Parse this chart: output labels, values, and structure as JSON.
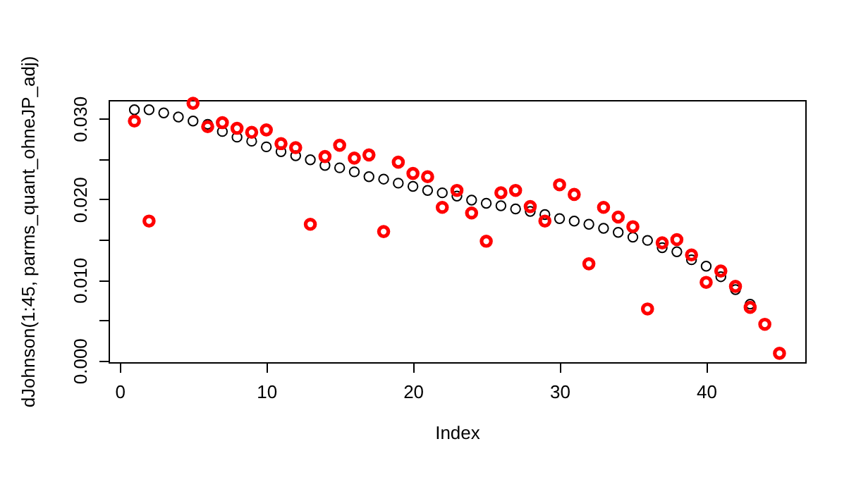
{
  "chart_data": {
    "type": "scatter",
    "xlabel": "Index",
    "ylabel": "dJohnson(1:45, parms_quant_ohneJP_adj)",
    "x": [
      1,
      2,
      3,
      4,
      5,
      6,
      7,
      8,
      9,
      10,
      11,
      12,
      13,
      14,
      15,
      16,
      17,
      18,
      19,
      20,
      21,
      22,
      23,
      24,
      25,
      26,
      27,
      28,
      29,
      30,
      31,
      32,
      33,
      34,
      35,
      36,
      37,
      38,
      39,
      40,
      41,
      42,
      43,
      44,
      45
    ],
    "series": [
      {
        "color": "#000000",
        "values": [
          0.0311,
          0.0311,
          0.0307,
          0.0302,
          0.0297,
          0.0293,
          0.0284,
          0.0277,
          0.0272,
          0.0265,
          0.0259,
          0.0254,
          0.0249,
          0.0242,
          0.0239,
          0.0234,
          0.0228,
          0.0225,
          0.022,
          0.0216,
          0.0211,
          0.0208,
          0.0204,
          0.0199,
          0.0195,
          0.0192,
          0.0188,
          0.0185,
          0.0181,
          0.0176,
          0.0173,
          0.0169,
          0.0164,
          0.0159,
          0.0153,
          0.0149,
          0.014,
          0.0135,
          0.0125,
          0.0117,
          0.0104,
          0.0088,
          0.007,
          null,
          null
        ]
      },
      {
        "color": "#ff0000",
        "values": [
          0.0297,
          0.0173,
          null,
          null,
          0.0319,
          0.029,
          0.0295,
          0.0288,
          0.0283,
          0.0286,
          0.0269,
          0.0264,
          0.0169,
          0.0253,
          0.0267,
          0.0251,
          0.0255,
          0.016,
          0.0246,
          0.0232,
          0.0228,
          0.019,
          0.0211,
          0.0183,
          0.0148,
          0.0208,
          0.0211,
          0.0191,
          0.0173,
          0.0218,
          0.0206,
          0.012,
          0.019,
          0.0178,
          0.0166,
          0.0064,
          0.0146,
          0.015,
          0.0131,
          0.0097,
          0.0111,
          0.0092,
          0.0066,
          0.0045,
          0.0009
        ]
      }
    ],
    "xlim": [
      -0.76,
      46.76
    ],
    "xticks": [
      0,
      10,
      20,
      30,
      40
    ],
    "ylim": [
      -0.0002,
      0.0323
    ],
    "yticks": [
      {
        "value": 0,
        "label": "0.000"
      },
      {
        "value": 0.005,
        "label": null
      },
      {
        "value": 0.01,
        "label": "0.010"
      },
      {
        "value": 0.015,
        "label": null
      },
      {
        "value": 0.02,
        "label": "0.020"
      },
      {
        "value": 0.025,
        "label": null
      },
      {
        "value": 0.03,
        "label": "0.030"
      }
    ],
    "marker": "circle",
    "grid": false
  }
}
